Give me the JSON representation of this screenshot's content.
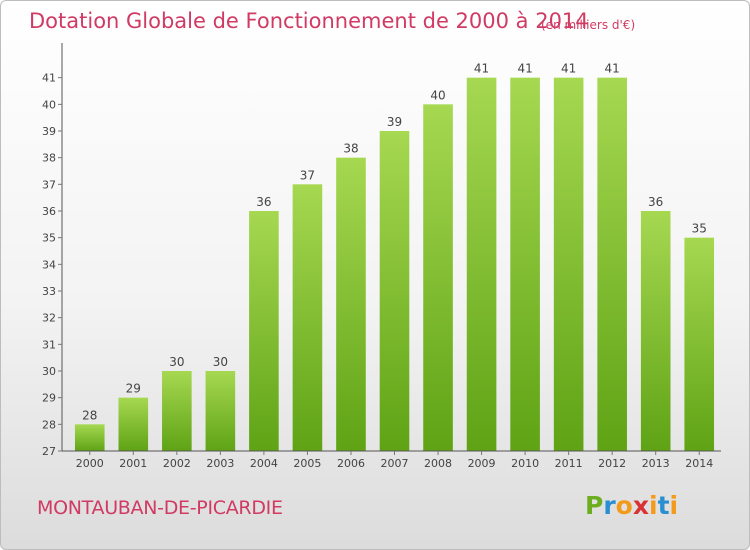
{
  "header": {
    "title": "Dotation Globale de Fonctionnement de 2000 à 2014",
    "subtitle": "(en milliers d'€)"
  },
  "footer": {
    "commune": "MONTAUBAN-DE-PICARDIE",
    "logo": {
      "letters": [
        "P",
        "r",
        "o",
        "x",
        "i",
        "t",
        "i"
      ]
    }
  },
  "colors": {
    "title": "#d03a63",
    "bar_light": "#a6d851",
    "bar_dark": "#5fa315",
    "axis": "#555555",
    "grid_tick": "#777777"
  },
  "chart_data": {
    "type": "bar",
    "categories": [
      "2000",
      "2001",
      "2002",
      "2003",
      "2004",
      "2005",
      "2006",
      "2007",
      "2008",
      "2009",
      "2010",
      "2011",
      "2012",
      "2013",
      "2014"
    ],
    "values": [
      28,
      29,
      30,
      30,
      36,
      37,
      38,
      39,
      40,
      41,
      41,
      41,
      41,
      36,
      35
    ],
    "title": "Dotation Globale de Fonctionnement de 2000 à 2014",
    "subtitle": "(en milliers d'€)",
    "xlabel": "",
    "ylabel": "",
    "ylim": [
      27,
      42
    ],
    "yticks": [
      27,
      28,
      29,
      30,
      31,
      32,
      33,
      34,
      35,
      36,
      37,
      38,
      39,
      40,
      41
    ],
    "grid": false,
    "legend": "none"
  }
}
